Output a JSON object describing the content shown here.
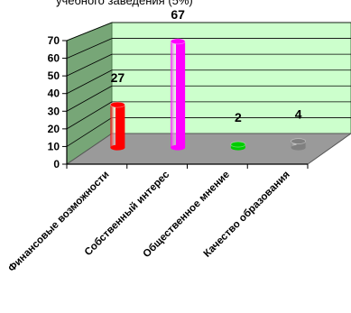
{
  "chart_data": {
    "type": "bar",
    "title_fragment": "учебного заведения (5%)",
    "categories": [
      "Финансовые возможности",
      "Собственный интерес",
      "Общественное мнение",
      "Качество образования"
    ],
    "values": [
      27,
      67,
      2,
      4
    ],
    "data_labels": [
      "27",
      "67",
      "2",
      "4"
    ],
    "ylim": [
      0,
      70
    ],
    "yticks": [
      "0",
      "10",
      "20",
      "30",
      "40",
      "50",
      "60",
      "70"
    ],
    "grid": true,
    "bar_style": "3d-cylinder",
    "colors": {
      "bars": [
        "#ff0000",
        "#ff00ff",
        "#00cc00",
        "#808080"
      ],
      "back_wall": "#ccffcc",
      "side_wall": "#77a677",
      "floor": "#9a9a9a"
    }
  }
}
